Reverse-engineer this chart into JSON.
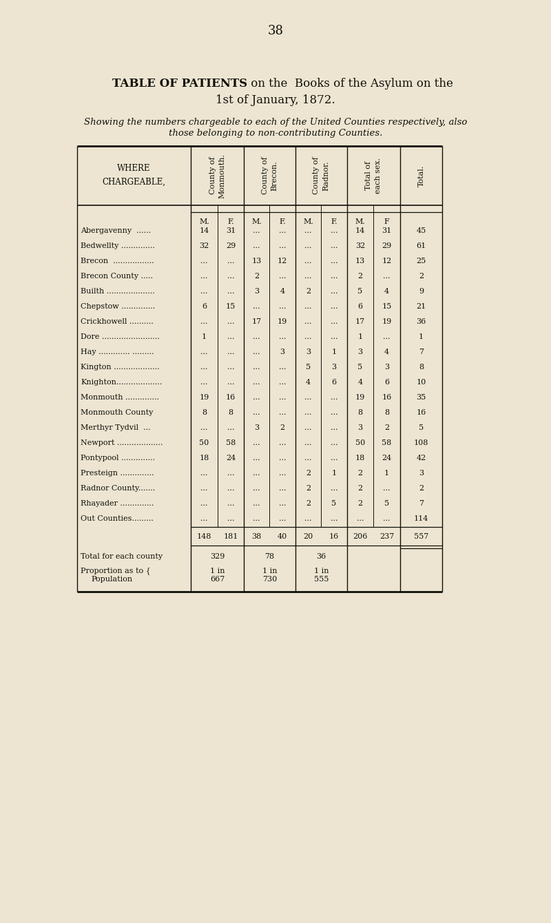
{
  "page_number": "38",
  "title_bold": "TABLE OF PATIENTS",
  "title_rest": " on the  Books of the Asylum on the",
  "title_line2": "1st of January, 1872.",
  "subtitle1": "Showing the numbers chargeable to each of the United Counties respectively, also",
  "subtitle2": "those belonging to non-contributing Counties.",
  "col_headers_rotated": [
    "County of\nMonmouth.",
    "County of\nBrecon.",
    "County of\nRadnor.",
    "Total of\neach sex.",
    "Total."
  ],
  "mf_labels": [
    "M.",
    "F.",
    "M.",
    "F.",
    "M.",
    "F.",
    "M.",
    "F"
  ],
  "rows": [
    [
      "Abergavenny  ......",
      "14",
      "31",
      "...",
      "...",
      "...",
      "...",
      "14",
      "31",
      "45"
    ],
    [
      "Bedwellty ..............",
      "32",
      "29",
      "...",
      "...",
      "...",
      "...",
      "32",
      "29",
      "61"
    ],
    [
      "Brecon  .................",
      "...",
      "...",
      "13",
      "12",
      "...",
      "...",
      "13",
      "12",
      "25"
    ],
    [
      "Brecon County .....",
      "...",
      "...",
      "2",
      "...",
      "...",
      "...",
      "2",
      "...",
      "2"
    ],
    [
      "Builth ....................",
      "...",
      "...",
      "3",
      "4",
      "2",
      "...",
      "5",
      "4",
      "9"
    ],
    [
      "Chepstow ..............",
      "6",
      "15",
      "...",
      "...",
      "...",
      "...",
      "6",
      "15",
      "21"
    ],
    [
      "Crickhowell ..........",
      "...",
      "...",
      "17",
      "19",
      "...",
      "...",
      "17",
      "19",
      "36"
    ],
    [
      "Dore ........................",
      "1",
      "...",
      "...",
      "...",
      "...",
      "...",
      "1",
      "...",
      "1"
    ],
    [
      "Hay ............. .........",
      "...",
      "...",
      "...",
      "3",
      "3",
      "1",
      "3",
      "4",
      "7"
    ],
    [
      "Kington ...................",
      "...",
      "...",
      "...",
      "...",
      "5",
      "3",
      "5",
      "3",
      "8"
    ],
    [
      "Knighton...................",
      "...",
      "...",
      "...",
      "...",
      "4",
      "6",
      "4",
      "6",
      "10"
    ],
    [
      "Monmouth ..............",
      "19",
      "16",
      "...",
      "...",
      "...",
      "...",
      "19",
      "16",
      "35"
    ],
    [
      "Monmouth County",
      "8",
      "8",
      "...",
      "...",
      "...",
      "...",
      "8",
      "8",
      "16"
    ],
    [
      "Merthyr Tydvil  ...",
      "...",
      "...",
      "3",
      "2",
      "...",
      "...",
      "3",
      "2",
      "5"
    ],
    [
      "Newport ...................",
      "50",
      "58",
      "...",
      "...",
      "...",
      "...",
      "50",
      "58",
      "108"
    ],
    [
      "Pontypool ..............",
      "18",
      "24",
      "...",
      "...",
      "...",
      "...",
      "18",
      "24",
      "42"
    ],
    [
      "Presteign ..............",
      "...",
      "...",
      "...",
      "...",
      "2",
      "1",
      "2",
      "1",
      "3"
    ],
    [
      "Radnor County.......",
      "...",
      "...",
      "...",
      "...",
      "2",
      "...",
      "2",
      "...",
      "2"
    ],
    [
      "Rhayader ..............",
      "...",
      "...",
      "...",
      "...",
      "2",
      "5",
      "2",
      "5",
      "7"
    ],
    [
      "Out Counties.........",
      "...",
      "...",
      "...",
      "...",
      "...",
      "...",
      "...",
      "...",
      "114"
    ]
  ],
  "totals_row": [
    "148",
    "181",
    "38",
    "40",
    "20",
    "16",
    "206",
    "237",
    "557"
  ],
  "county_totals_label": "Total for each county",
  "county_totals": [
    "329",
    "78",
    "36"
  ],
  "prop_label1": "Proportion as to {",
  "prop_label2": "Population",
  "proportions_top": [
    "1 in",
    "1 in",
    "1 in"
  ],
  "proportions_bot": [
    "667",
    "730",
    "555"
  ],
  "bg_color": "#ede5d2",
  "text_color": "#111008",
  "line_color": "#111008"
}
